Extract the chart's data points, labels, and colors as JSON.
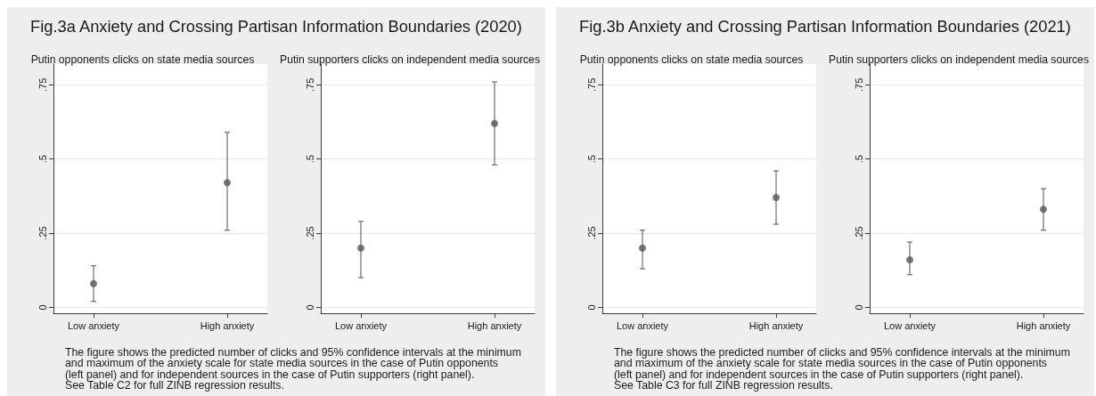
{
  "chart_data": [
    {
      "type": "scatter",
      "title": "Fig.3a Anxiety and Crossing Partisan Information Boundaries (2020)",
      "subtitle": "Putin opponents clicks on state media sources",
      "categories": [
        "Low anxiety",
        "High anxiety"
      ],
      "values": [
        0.08,
        0.42
      ],
      "errors": [
        [
          0.02,
          0.14
        ],
        [
          0.26,
          0.59
        ]
      ],
      "color": "#555555",
      "marker": "circle",
      "ylim": [
        -0.02,
        0.82
      ],
      "yticks": [
        {
          "value": 0,
          "label": "0"
        },
        {
          "value": 0.25,
          "label": ".25"
        },
        {
          "value": 0.5,
          "label": ".5"
        },
        {
          "value": 0.75,
          "label": ".75"
        }
      ],
      "grid": "y",
      "annotations": [
        "The figure shows the predicted number of clicks and 95% confidence intervals at the minimum\nand maximum of the anxiety scale for state media sources in the case of Putin opponents\n(left panel) and for independent sources in the case of Putin supporters (right panel).\nSee Table C2 for full ZINB regression results."
      ]
    },
    {
      "type": "scatter",
      "subtitle": "Putin supporters clicks on independent media sources",
      "categories": [
        "Low anxiety",
        "High anxiety"
      ],
      "values": [
        0.2,
        0.62
      ],
      "errors": [
        [
          0.1,
          0.29
        ],
        [
          0.48,
          0.76
        ]
      ],
      "color": "#555555",
      "marker": "circle",
      "ylim": [
        -0.02,
        0.82
      ],
      "yticks": [
        {
          "value": 0,
          "label": "0"
        },
        {
          "value": 0.25,
          "label": ".25"
        },
        {
          "value": 0.5,
          "label": ".5"
        },
        {
          "value": 0.75,
          "label": ".75"
        }
      ],
      "grid": "y"
    },
    {
      "type": "scatter",
      "title": "Fig.3b Anxiety and Crossing Partisan Information Boundaries (2021)",
      "subtitle": "Putin opponents clicks on state media sources",
      "categories": [
        "Low anxiety",
        "High anxiety"
      ],
      "values": [
        0.2,
        0.37
      ],
      "errors": [
        [
          0.13,
          0.26
        ],
        [
          0.28,
          0.46
        ]
      ],
      "color": "#555555",
      "marker": "circle",
      "ylim": [
        -0.02,
        0.82
      ],
      "yticks": [
        {
          "value": 0,
          "label": "0"
        },
        {
          "value": 0.25,
          "label": ".25"
        },
        {
          "value": 0.5,
          "label": ".5"
        },
        {
          "value": 0.75,
          "label": ".75"
        }
      ],
      "grid": "y",
      "annotations": [
        "The figure shows the predicted number of clicks and 95% confidence intervals at the minimum\nand maximum of the anxiety scale for state media sources in the case of Putin opponents\n(left panel) and for independent sources in the case of Putin supporters (right panel).\nSee Table C3 for full ZINB regression results."
      ]
    },
    {
      "type": "scatter",
      "subtitle": "Putin supporters clicks on independent media sources",
      "categories": [
        "Low anxiety",
        "High anxiety"
      ],
      "values": [
        0.16,
        0.33
      ],
      "errors": [
        [
          0.11,
          0.22
        ],
        [
          0.26,
          0.4
        ]
      ],
      "color": "#555555",
      "marker": "circle",
      "ylim": [
        -0.02,
        0.82
      ],
      "yticks": [
        {
          "value": 0,
          "label": "0"
        },
        {
          "value": 0.25,
          "label": ".25"
        },
        {
          "value": 0.5,
          "label": ".5"
        },
        {
          "value": 0.75,
          "label": ".75"
        }
      ],
      "grid": "y"
    }
  ]
}
